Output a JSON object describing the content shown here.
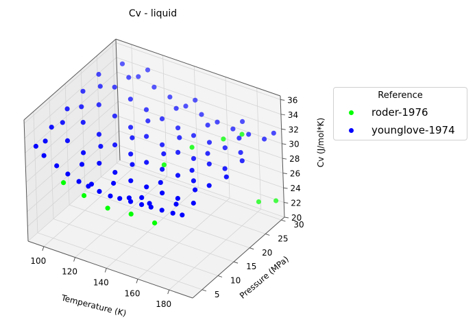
{
  "chart_data": {
    "type": "scatter",
    "projection": "3d",
    "title": "Cv - liquid",
    "xlabel": "Temperature (K)",
    "ylabel": "Pressure (MPa)",
    "zlabel": "Cv (J/mol*K)",
    "xlim": [
      90,
      195
    ],
    "ylim": [
      2,
      31
    ],
    "zlim": [
      20,
      36.5
    ],
    "x_ticks": [
      "100",
      "120",
      "140",
      "160",
      "180"
    ],
    "y_ticks": [
      "5",
      "10",
      "15",
      "20",
      "25",
      "30"
    ],
    "z_ticks": [
      "20",
      "22",
      "24",
      "26",
      "28",
      "30",
      "32",
      "34",
      "36"
    ],
    "grid": true,
    "legend": {
      "title": "Reference",
      "placement": "right",
      "entries": [
        {
          "label": "roder-1976",
          "color": "#00ff00"
        },
        {
          "label": "younglove-1974",
          "color": "#0000ff"
        }
      ]
    },
    "series": [
      {
        "name": "roder-1976",
        "color": "#00ff00",
        "points": [
          {
            "x": 112,
            "y": 3,
            "z": 29.2
          },
          {
            "x": 125,
            "y": 3,
            "z": 28.4
          },
          {
            "x": 140,
            "y": 3,
            "z": 27.8
          },
          {
            "x": 155,
            "y": 3,
            "z": 28.1
          },
          {
            "x": 170,
            "y": 3,
            "z": 28.0
          },
          {
            "x": 150,
            "y": 16,
            "z": 29.5
          },
          {
            "x": 160,
            "y": 20,
            "z": 31.1
          },
          {
            "x": 172,
            "y": 24,
            "z": 31.6
          },
          {
            "x": 182,
            "y": 25,
            "z": 32.6
          },
          {
            "x": 185,
            "y": 28,
            "z": 22.5
          },
          {
            "x": 192,
            "y": 30,
            "z": 22.4
          }
        ]
      },
      {
        "name": "younglove-1974",
        "color": "#0000ff",
        "points": [
          {
            "x": 95,
            "y": 3,
            "z": 32.9
          },
          {
            "x": 100,
            "y": 3,
            "z": 32.0
          },
          {
            "x": 108,
            "y": 3,
            "z": 31.2
          },
          {
            "x": 115,
            "y": 3,
            "z": 30.6
          },
          {
            "x": 122,
            "y": 3,
            "z": 30.1
          },
          {
            "x": 128,
            "y": 3,
            "z": 29.9
          },
          {
            "x": 135,
            "y": 3,
            "z": 29.7
          },
          {
            "x": 142,
            "y": 3,
            "z": 29.6
          },
          {
            "x": 148,
            "y": 3,
            "z": 29.7
          },
          {
            "x": 155,
            "y": 3,
            "z": 29.8
          },
          {
            "x": 162,
            "y": 3,
            "z": 29.9
          },
          {
            "x": 168,
            "y": 3,
            "z": 30.0
          },
          {
            "x": 175,
            "y": 3,
            "z": 30.1
          },
          {
            "x": 182,
            "y": 3,
            "z": 30.2
          },
          {
            "x": 188,
            "y": 3,
            "z": 30.4
          },
          {
            "x": 95,
            "y": 8,
            "z": 33.6
          },
          {
            "x": 105,
            "y": 8,
            "z": 32.5
          },
          {
            "x": 115,
            "y": 8,
            "z": 31.6
          },
          {
            "x": 125,
            "y": 8,
            "z": 30.9
          },
          {
            "x": 135,
            "y": 8,
            "z": 30.4
          },
          {
            "x": 145,
            "y": 8,
            "z": 30.0
          },
          {
            "x": 155,
            "y": 8,
            "z": 29.9
          },
          {
            "x": 165,
            "y": 8,
            "z": 29.8
          },
          {
            "x": 175,
            "y": 8,
            "z": 29.8
          },
          {
            "x": 185,
            "y": 8,
            "z": 29.9
          },
          {
            "x": 95,
            "y": 13,
            "z": 34.2
          },
          {
            "x": 105,
            "y": 13,
            "z": 33.1
          },
          {
            "x": 115,
            "y": 13,
            "z": 32.2
          },
          {
            "x": 125,
            "y": 13,
            "z": 31.5
          },
          {
            "x": 135,
            "y": 13,
            "z": 31.0
          },
          {
            "x": 145,
            "y": 13,
            "z": 30.6
          },
          {
            "x": 155,
            "y": 13,
            "z": 30.4
          },
          {
            "x": 165,
            "y": 13,
            "z": 30.3
          },
          {
            "x": 175,
            "y": 13,
            "z": 30.3
          },
          {
            "x": 185,
            "y": 13,
            "z": 30.4
          },
          {
            "x": 95,
            "y": 18,
            "z": 34.7
          },
          {
            "x": 105,
            "y": 18,
            "z": 33.6
          },
          {
            "x": 115,
            "y": 18,
            "z": 32.8
          },
          {
            "x": 125,
            "y": 18,
            "z": 32.0
          },
          {
            "x": 135,
            "y": 18,
            "z": 31.5
          },
          {
            "x": 145,
            "y": 18,
            "z": 31.1
          },
          {
            "x": 155,
            "y": 18,
            "z": 30.8
          },
          {
            "x": 165,
            "y": 18,
            "z": 30.7
          },
          {
            "x": 175,
            "y": 18,
            "z": 30.7
          },
          {
            "x": 185,
            "y": 18,
            "z": 30.8
          },
          {
            "x": 95,
            "y": 23,
            "z": 35.1
          },
          {
            "x": 105,
            "y": 23,
            "z": 34.1
          },
          {
            "x": 115,
            "y": 23,
            "z": 33.2
          },
          {
            "x": 125,
            "y": 23,
            "z": 32.5
          },
          {
            "x": 135,
            "y": 23,
            "z": 32.0
          },
          {
            "x": 145,
            "y": 23,
            "z": 31.5
          },
          {
            "x": 155,
            "y": 23,
            "z": 31.2
          },
          {
            "x": 165,
            "y": 23,
            "z": 31.0
          },
          {
            "x": 175,
            "y": 23,
            "z": 31.0
          },
          {
            "x": 185,
            "y": 23,
            "z": 31.1
          },
          {
            "x": 100,
            "y": 28,
            "z": 35.0
          },
          {
            "x": 110,
            "y": 28,
            "z": 34.0
          },
          {
            "x": 120,
            "y": 28,
            "z": 33.3
          },
          {
            "x": 130,
            "y": 28,
            "z": 32.7
          },
          {
            "x": 140,
            "y": 28,
            "z": 32.2
          },
          {
            "x": 150,
            "y": 28,
            "z": 31.8
          },
          {
            "x": 160,
            "y": 28,
            "z": 31.5
          },
          {
            "x": 170,
            "y": 28,
            "z": 31.3
          },
          {
            "x": 180,
            "y": 28,
            "z": 31.3
          },
          {
            "x": 190,
            "y": 28,
            "z": 31.4
          },
          {
            "x": 97,
            "y": 5,
            "z": 33.0
          },
          {
            "x": 118,
            "y": 6,
            "z": 31.0
          },
          {
            "x": 138,
            "y": 6,
            "z": 29.9
          },
          {
            "x": 158,
            "y": 5,
            "z": 29.8
          },
          {
            "x": 178,
            "y": 6,
            "z": 30.0
          },
          {
            "x": 98,
            "y": 10,
            "z": 33.7
          },
          {
            "x": 120,
            "y": 11,
            "z": 31.7
          },
          {
            "x": 140,
            "y": 11,
            "z": 30.7
          },
          {
            "x": 160,
            "y": 10,
            "z": 30.1
          },
          {
            "x": 180,
            "y": 11,
            "z": 30.2
          },
          {
            "x": 100,
            "y": 15,
            "z": 34.1
          },
          {
            "x": 130,
            "y": 16,
            "z": 31.7
          },
          {
            "x": 150,
            "y": 16,
            "z": 31.0
          },
          {
            "x": 170,
            "y": 15,
            "z": 30.6
          },
          {
            "x": 190,
            "y": 16,
            "z": 30.8
          },
          {
            "x": 100,
            "y": 21,
            "z": 34.6
          },
          {
            "x": 130,
            "y": 21,
            "z": 32.1
          },
          {
            "x": 150,
            "y": 21,
            "z": 31.3
          },
          {
            "x": 170,
            "y": 20,
            "z": 31.0
          },
          {
            "x": 190,
            "y": 21,
            "z": 31.1
          },
          {
            "x": 108,
            "y": 26,
            "z": 34.5
          },
          {
            "x": 138,
            "y": 26,
            "z": 32.5
          },
          {
            "x": 158,
            "y": 26,
            "z": 31.7
          },
          {
            "x": 178,
            "y": 26,
            "z": 31.4
          },
          {
            "x": 192,
            "y": 30,
            "z": 31.6
          },
          {
            "x": 112,
            "y": 30,
            "z": 34.3
          },
          {
            "x": 142,
            "y": 30,
            "z": 32.4
          },
          {
            "x": 172,
            "y": 30,
            "z": 31.7
          },
          {
            "x": 128,
            "y": 4,
            "z": 29.8
          },
          {
            "x": 152,
            "y": 4,
            "z": 29.7
          },
          {
            "x": 165,
            "y": 4,
            "z": 29.9
          }
        ]
      }
    ]
  }
}
